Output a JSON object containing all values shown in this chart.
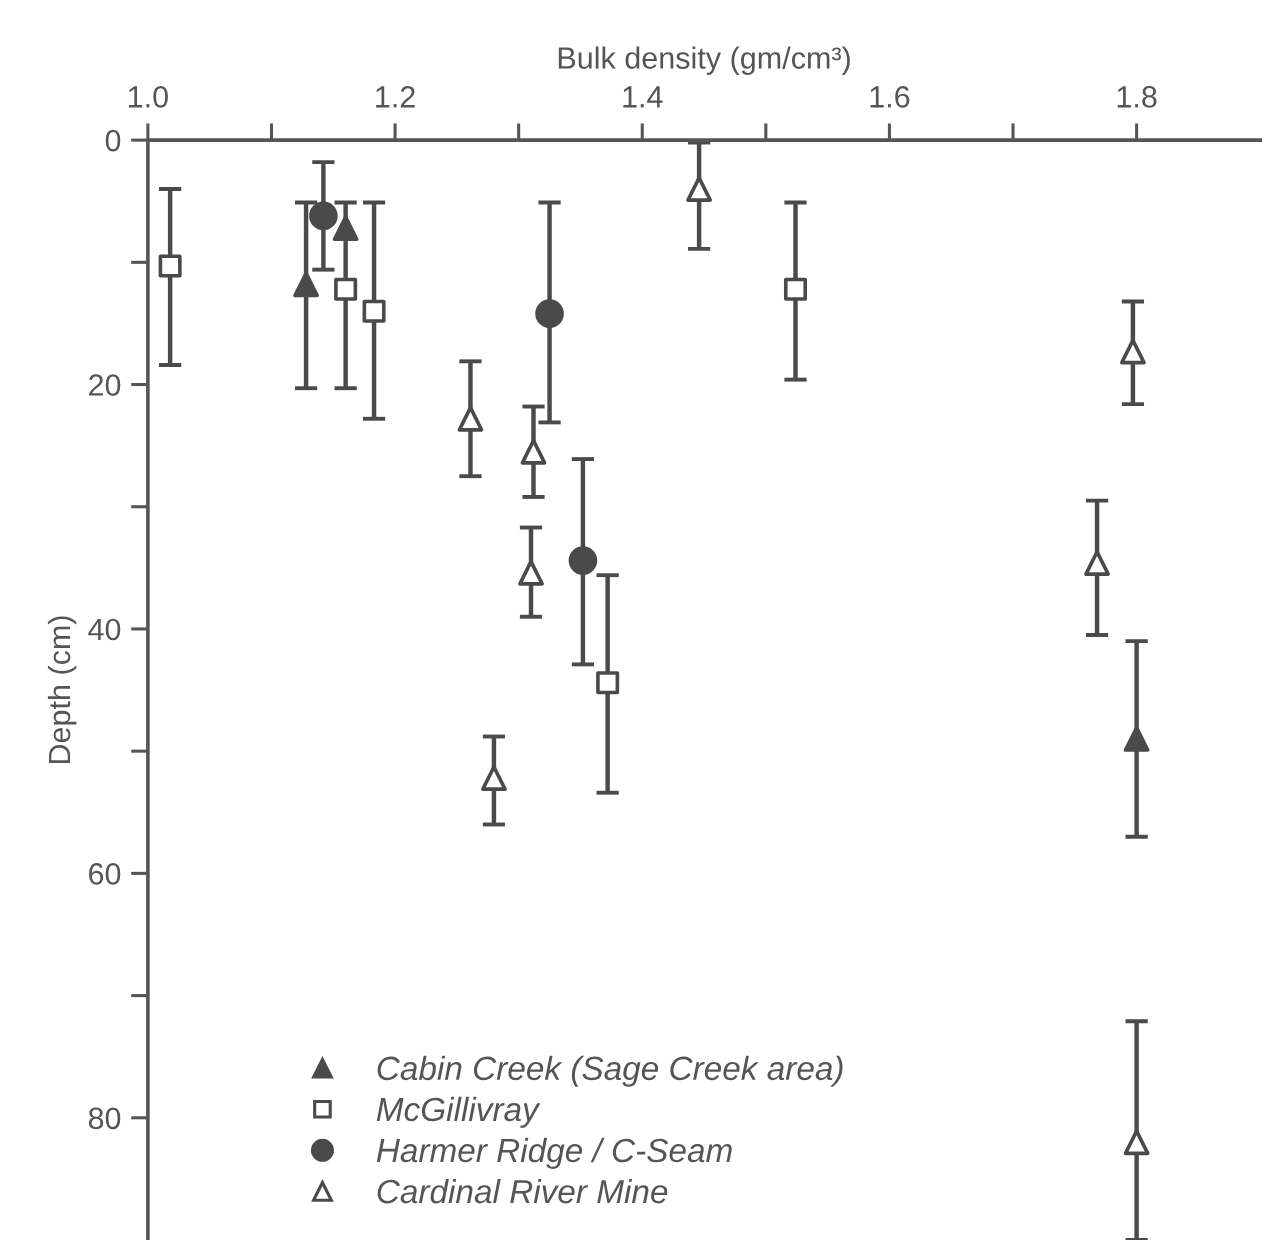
{
  "chart_data": {
    "type": "scatter",
    "xlabel": "Bulk density (gm/cm³)",
    "ylabel": "Depth (cm)",
    "xlim": [
      1.0,
      1.9
    ],
    "ylim": [
      90,
      0
    ],
    "xticks": [
      {
        "value": 1.0,
        "label": "1.0"
      },
      {
        "value": 1.1,
        "label": null
      },
      1.2,
      {
        "value": 1.3,
        "label": null
      },
      1.4,
      {
        "value": 1.5,
        "label": null
      },
      1.6,
      {
        "value": 1.7,
        "label": null
      },
      1.8
    ],
    "yticks": [
      0,
      {
        "value": 10,
        "label": null
      },
      20,
      {
        "value": 30,
        "label": null
      },
      40,
      {
        "value": 50,
        "label": null
      },
      60,
      {
        "value": 70,
        "label": null
      },
      80
    ],
    "grid": false,
    "legend": "bottom left",
    "series": [
      {
        "name": "Cabin Creek (Sage Creek area)",
        "color": "#4a4a4a",
        "marker": "triangle",
        "x": [
          1.128,
          1.16,
          1.8
        ],
        "values": [
          11.8,
          7.2,
          49.0
        ],
        "errors": [
          [
            5.1,
            20.3
          ],
          [
            5.1,
            20.3
          ],
          [
            41.0,
            57.0
          ]
        ]
      },
      {
        "name": "McGillivray",
        "color": "#4a4a4a",
        "marker": "square",
        "x": [
          1.018,
          1.16,
          1.183,
          1.524,
          1.372
        ],
        "values": [
          10.3,
          12.2,
          14.0,
          12.2,
          44.4
        ],
        "errors": [
          [
            4.0,
            18.4
          ],
          null,
          [
            5.1,
            22.8
          ],
          [
            5.1,
            19.6
          ],
          [
            35.6,
            53.4
          ]
        ]
      },
      {
        "name": "Harmer Ridge / C-Seam",
        "color": "#4a4a4a",
        "marker": "circle",
        "x": [
          1.142,
          1.325,
          1.352
        ],
        "values": [
          6.2,
          14.2,
          34.4
        ],
        "errors": [
          [
            1.8,
            10.6
          ],
          [
            5.1,
            23.1
          ],
          [
            26.1,
            42.9
          ]
        ]
      },
      {
        "name": "Cardinal River Mine",
        "color": "#4a4a4a",
        "marker": "triangle",
        "x": [
          1.446,
          1.261,
          1.312,
          1.31,
          1.28,
          1.797,
          1.768,
          1.8
        ],
        "values": [
          4.0,
          22.8,
          25.5,
          35.4,
          52.2,
          17.3,
          34.6,
          82.0
        ],
        "errors": [
          [
            0.2,
            8.9
          ],
          [
            18.1,
            27.5
          ],
          [
            21.8,
            29.2
          ],
          [
            31.7,
            39.0
          ],
          [
            48.8,
            56.0
          ],
          [
            13.2,
            21.6
          ],
          [
            29.5,
            40.5
          ],
          [
            72.1,
            90
          ]
        ]
      }
    ]
  }
}
